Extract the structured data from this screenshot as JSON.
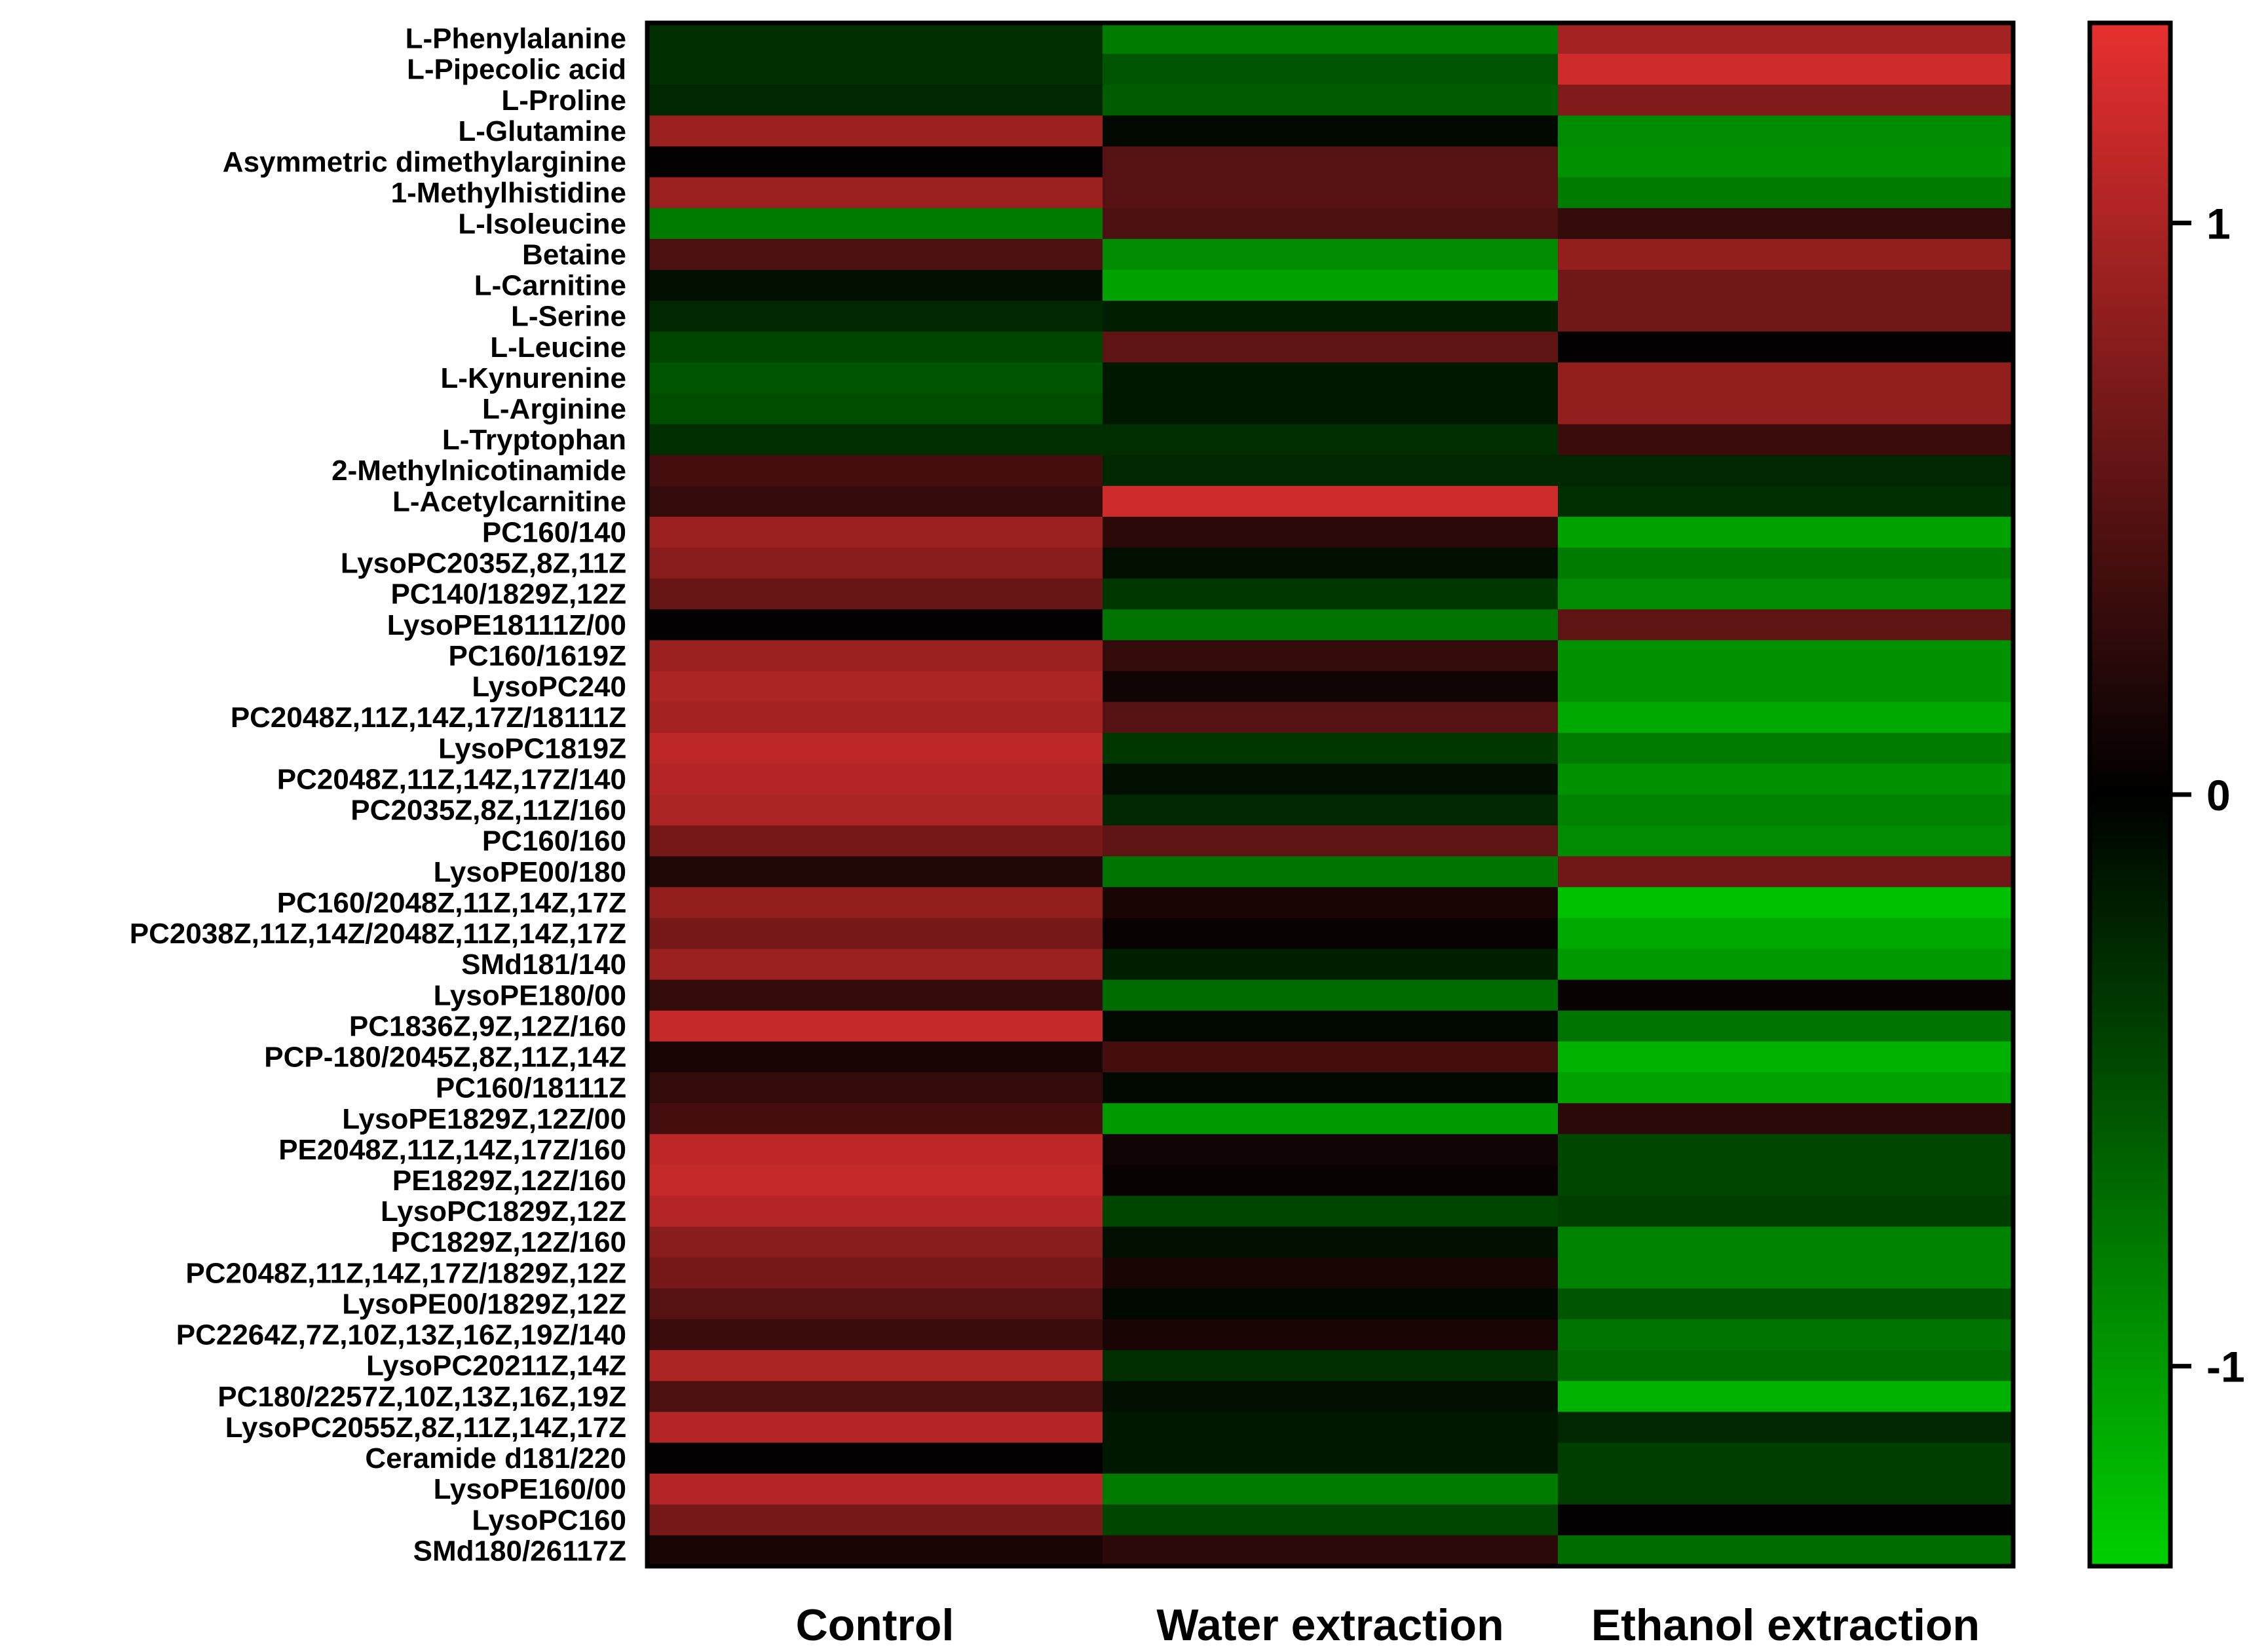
{
  "chart_data": {
    "type": "heatmap",
    "title": "",
    "xlabel": "",
    "ylabel": "",
    "columns": [
      "Control",
      "Water extraction",
      "Ethanol extraction"
    ],
    "rows": [
      "L-Phenylalanine",
      "L-Pipecolic acid",
      "L-Proline",
      "L-Glutamine",
      "Asymmetric dimethylarginine",
      "1-Methylhistidine",
      "L-Isoleucine",
      "Betaine",
      "L-Carnitine",
      "L-Serine",
      "L-Leucine",
      "L-Kynurenine",
      "L-Arginine",
      "L-Tryptophan",
      "2-Methylnicotinamide",
      "L-Acetylcarnitine",
      "PC160/140",
      "LysoPC2035Z,8Z,11Z",
      "PC140/1829Z,12Z",
      "LysoPE18111Z/00",
      "PC160/1619Z",
      "LysoPC240",
      "PC2048Z,11Z,14Z,17Z/18111Z",
      "LysoPC1819Z",
      "PC2048Z,11Z,14Z,17Z/140",
      "PC2035Z,8Z,11Z/160",
      "PC160/160",
      "LysoPE00/180",
      "PC160/2048Z,11Z,14Z,17Z",
      "PC2038Z,11Z,14Z/2048Z,11Z,14Z,17Z",
      "SMd181/140",
      "LysoPE180/00",
      "PC1836Z,9Z,12Z/160",
      "PCP-180/2045Z,8Z,11Z,14Z",
      "PC160/18111Z",
      "LysoPE1829Z,12Z/00",
      "PE2048Z,11Z,14Z,17Z/160",
      "PE1829Z,12Z/160",
      "LysoPC1829Z,12Z",
      "PC1829Z,12Z/160",
      "PC2048Z,11Z,14Z,17Z/1829Z,12Z",
      "LysoPE00/1829Z,12Z",
      "PC2264Z,7Z,10Z,13Z,16Z,19Z/140",
      "LysoPC20211Z,14Z",
      "PC180/2257Z,10Z,13Z,16Z,19Z",
      "LysoPC2055Z,8Z,11Z,14Z,17Z",
      "Ceramide d181/220",
      "LysoPE160/00",
      "LysoPC160",
      "SMd180/26117Z"
    ],
    "values": [
      [
        -0.3,
        -0.8,
        0.95
      ],
      [
        -0.3,
        -0.55,
        1.2
      ],
      [
        -0.25,
        -0.6,
        0.75
      ],
      [
        0.9,
        -0.05,
        -0.9
      ],
      [
        0.02,
        0.5,
        -0.95
      ],
      [
        0.9,
        0.5,
        -0.8
      ],
      [
        -0.8,
        0.45,
        0.3
      ],
      [
        0.45,
        -0.9,
        0.85
      ],
      [
        -0.1,
        -1.05,
        0.65
      ],
      [
        -0.25,
        -0.2,
        0.65
      ],
      [
        -0.45,
        0.55,
        0.02
      ],
      [
        -0.55,
        -0.15,
        0.85
      ],
      [
        -0.5,
        -0.15,
        0.85
      ],
      [
        -0.3,
        -0.3,
        0.35
      ],
      [
        0.4,
        -0.25,
        -0.25
      ],
      [
        0.3,
        1.2,
        -0.3
      ],
      [
        0.9,
        0.25,
        -1.05
      ],
      [
        0.8,
        -0.1,
        -0.8
      ],
      [
        0.6,
        -0.35,
        -0.9
      ],
      [
        0.02,
        -0.75,
        0.55
      ],
      [
        0.9,
        0.3,
        -0.95
      ],
      [
        1.0,
        0.1,
        -0.95
      ],
      [
        0.95,
        0.5,
        -1.1
      ],
      [
        1.1,
        -0.35,
        -0.8
      ],
      [
        1.05,
        -0.1,
        -0.95
      ],
      [
        1.0,
        -0.25,
        -0.85
      ],
      [
        0.7,
        0.55,
        -0.9
      ],
      [
        0.2,
        -0.75,
        0.65
      ],
      [
        0.85,
        0.15,
        -1.25
      ],
      [
        0.7,
        0.05,
        -1.1
      ],
      [
        0.9,
        -0.2,
        -1.0
      ],
      [
        0.3,
        -0.7,
        0.05
      ],
      [
        1.15,
        -0.05,
        -0.75
      ],
      [
        0.15,
        0.4,
        -1.15
      ],
      [
        0.3,
        -0.05,
        -1.05
      ],
      [
        0.4,
        -1.0,
        0.25
      ],
      [
        1.1,
        0.1,
        -0.45
      ],
      [
        1.15,
        0.05,
        -0.45
      ],
      [
        1.05,
        -0.45,
        -0.4
      ],
      [
        0.8,
        -0.1,
        -0.85
      ],
      [
        0.7,
        0.15,
        -0.85
      ],
      [
        0.5,
        -0.05,
        -0.55
      ],
      [
        0.35,
        0.15,
        -0.75
      ],
      [
        1.0,
        -0.3,
        -0.7
      ],
      [
        0.45,
        -0.1,
        -1.15
      ],
      [
        1.05,
        -0.15,
        -0.25
      ],
      [
        0.02,
        -0.15,
        -0.4
      ],
      [
        1.05,
        -0.8,
        -0.4
      ],
      [
        0.7,
        -0.45,
        0.02
      ],
      [
        0.15,
        0.25,
        -0.7
      ]
    ],
    "color_scale": {
      "min": -1.35,
      "max": 1.35,
      "low_color": "#00d000",
      "mid_color": "#000000",
      "high_color": "#e83030"
    },
    "colorbar": {
      "ticks": [
        1,
        0,
        -1
      ],
      "tick_labels": [
        "1",
        "0",
        "-1"
      ]
    }
  }
}
